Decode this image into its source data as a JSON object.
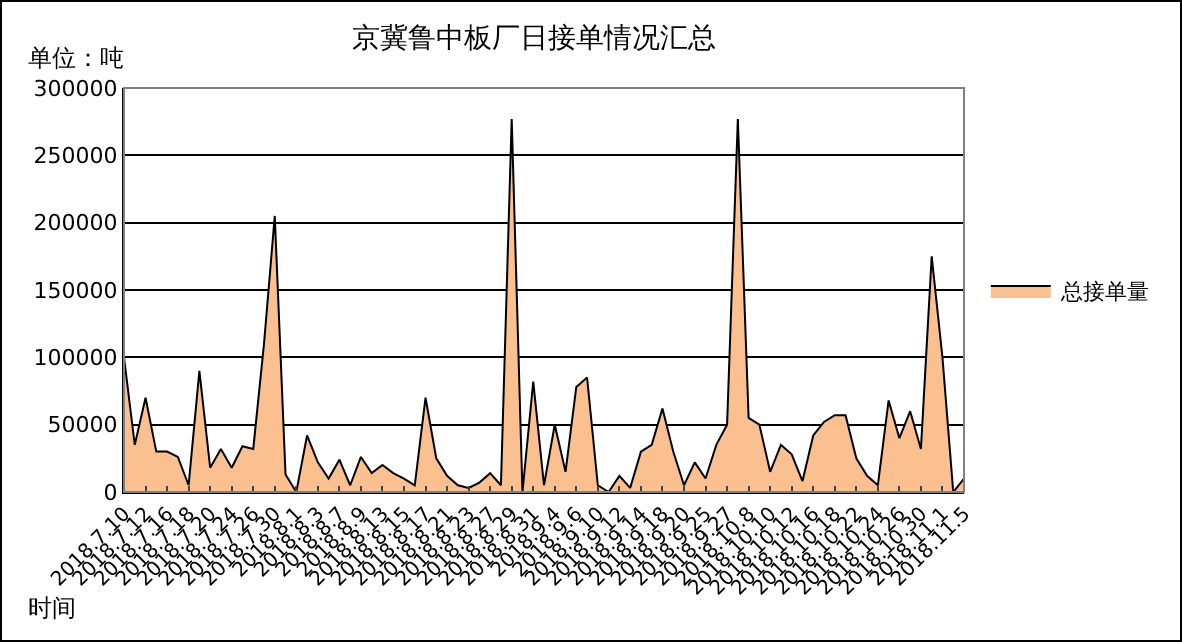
{
  "chart_data": {
    "type": "area",
    "title": "京冀鲁中板厂日接单情况汇总",
    "ylabel": "单位：吨",
    "xlabel": "时间",
    "categories": [
      "2018.7.10",
      null,
      "2018.7.12",
      null,
      "2018.7.16",
      null,
      "2018.7.18",
      null,
      "2018.7.20",
      null,
      "2018.7.24",
      null,
      "2018.7.26",
      null,
      "2018.7.30",
      null,
      "2018.8.1",
      null,
      "2018.8.3",
      null,
      "2018.8.7",
      null,
      "2018.8.9",
      null,
      "2018.8.13",
      null,
      "2018.8.15",
      null,
      "2018.8.17",
      null,
      "2018.8.21",
      null,
      "2018.8.23",
      null,
      "2018.8.27",
      null,
      "2018.8.29",
      null,
      "2018.8.31",
      null,
      "2018.9.4",
      null,
      "2018.9.6",
      null,
      "2018.9.10",
      null,
      "2018.9.12",
      null,
      "2018.9.14",
      null,
      "2018.9.18",
      null,
      "2018.9.20",
      null,
      "2018.9.25",
      null,
      "2018.9.27",
      null,
      "2018.10.8",
      null,
      "2018.10.10",
      null,
      "2018.10.12",
      null,
      "2018.10.16",
      null,
      "2018.10.18",
      null,
      "2018.10.22",
      null,
      "2018.10.24",
      null,
      "2018.10.26",
      null,
      "2018.10.30",
      null,
      "2018.11.1",
      null,
      "2018.11.5"
    ],
    "series": [
      {
        "name": "总接单量",
        "color": "#fac090",
        "values": [
          100000,
          35000,
          70000,
          30000,
          30000,
          26000,
          5000,
          90000,
          18000,
          32000,
          18000,
          34000,
          32000,
          110000,
          205000,
          13000,
          0,
          42000,
          22000,
          10000,
          24000,
          5000,
          26000,
          14000,
          20000,
          14000,
          10000,
          5000,
          70000,
          25000,
          12000,
          5000,
          3000,
          7000,
          14000,
          5000,
          277000,
          0,
          82000,
          5000,
          50000,
          15000,
          78000,
          85000,
          5000,
          0,
          12000,
          3000,
          30000,
          35000,
          62000,
          30000,
          5000,
          22000,
          10000,
          35000,
          50000,
          277000,
          55000,
          50000,
          15000,
          35000,
          28000,
          8000,
          42000,
          52000,
          57000,
          57000,
          25000,
          12000,
          5000,
          68000,
          40000,
          60000,
          32000,
          175000,
          100000,
          0,
          10000
        ]
      }
    ],
    "ylim": [
      0,
      300000
    ],
    "yticks": [
      0,
      50000,
      100000,
      150000,
      200000,
      250000,
      300000
    ],
    "grid": "y",
    "legend": "right"
  }
}
